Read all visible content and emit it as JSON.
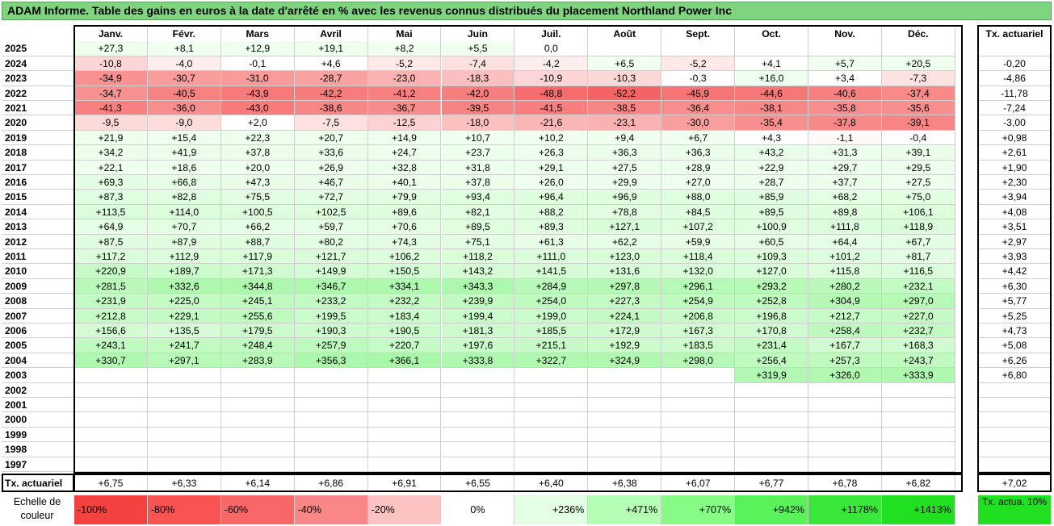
{
  "title": "ADAM Informe. Table des gains en euros à la date d'arrêté en % avec les revenus connus distribués du placement Northland Power Inc",
  "months": [
    "Janv.",
    "Févr.",
    "Mars",
    "Avril",
    "Mai",
    "Juin",
    "Juil.",
    "Août",
    "Sept.",
    "Oct.",
    "Nov.",
    "Déc."
  ],
  "actu_header": "Tx. actuariel",
  "rows": [
    {
      "year": "2025",
      "values": [
        "+27,3",
        "+8,1",
        "+12,9",
        "+19,1",
        "+8,2",
        "+5,5",
        "0,0",
        "",
        "",
        "",
        "",
        ""
      ],
      "actu": ""
    },
    {
      "year": "2024",
      "values": [
        "-10,8",
        "-4,0",
        "-0,1",
        "+4,6",
        "-5,2",
        "-7,4",
        "-4,2",
        "+6,5",
        "-5,2",
        "+4,1",
        "+5,7",
        "+20,5"
      ],
      "actu": "-0,20"
    },
    {
      "year": "2023",
      "values": [
        "-34,9",
        "-30,7",
        "-31,0",
        "-28,7",
        "-23,0",
        "-18,3",
        "-10,9",
        "-10,3",
        "-0,3",
        "+16,0",
        "+3,4",
        "-7,3"
      ],
      "actu": "-4,86"
    },
    {
      "year": "2022",
      "values": [
        "-34,7",
        "-40,5",
        "-43,9",
        "-42,2",
        "-41,2",
        "-42,0",
        "-48,8",
        "-52,2",
        "-45,9",
        "-44,6",
        "-40,6",
        "-37,4"
      ],
      "actu": "-11,78"
    },
    {
      "year": "2021",
      "values": [
        "-41,3",
        "-36,0",
        "-43,0",
        "-38,6",
        "-36,7",
        "-39,5",
        "-41,5",
        "-38,5",
        "-36,4",
        "-38,1",
        "-35,8",
        "-35,6"
      ],
      "actu": "-7,24"
    },
    {
      "year": "2020",
      "values": [
        "-9,5",
        "-9,0",
        "+2,0",
        "-7,5",
        "-12,5",
        "-18,0",
        "-21,6",
        "-23,1",
        "-30,0",
        "-35,4",
        "-37,8",
        "-39,1"
      ],
      "actu": "-3,00"
    },
    {
      "year": "2019",
      "values": [
        "+21,9",
        "+15,4",
        "+22,3",
        "+20,7",
        "+14,9",
        "+10,7",
        "+10,2",
        "+9,4",
        "+6,7",
        "+4,3",
        "-1,1",
        "-0,4"
      ],
      "actu": "+0,98"
    },
    {
      "year": "2018",
      "values": [
        "+34,2",
        "+41,9",
        "+37,8",
        "+33,6",
        "+24,7",
        "+23,7",
        "+26,3",
        "+36,3",
        "+36,3",
        "+43,2",
        "+31,3",
        "+39,1"
      ],
      "actu": "+2,61"
    },
    {
      "year": "2017",
      "values": [
        "+22,1",
        "+18,6",
        "+20,0",
        "+26,9",
        "+32,8",
        "+31,8",
        "+29,1",
        "+27,5",
        "+28,9",
        "+22,9",
        "+29,7",
        "+29,5"
      ],
      "actu": "+1,90"
    },
    {
      "year": "2016",
      "values": [
        "+69,3",
        "+66,8",
        "+47,3",
        "+46,7",
        "+40,1",
        "+37,8",
        "+26,0",
        "+29,9",
        "+27,0",
        "+28,7",
        "+37,7",
        "+27,5"
      ],
      "actu": "+2,30"
    },
    {
      "year": "2015",
      "values": [
        "+87,3",
        "+82,8",
        "+75,5",
        "+72,7",
        "+79,9",
        "+93,4",
        "+96,4",
        "+96,9",
        "+88,0",
        "+85,9",
        "+68,2",
        "+75,0"
      ],
      "actu": "+3,94"
    },
    {
      "year": "2014",
      "values": [
        "+113,5",
        "+114,0",
        "+100,5",
        "+102,5",
        "+89,6",
        "+82,1",
        "+88,2",
        "+78,8",
        "+84,5",
        "+89,5",
        "+89,8",
        "+106,1"
      ],
      "actu": "+4,08"
    },
    {
      "year": "2013",
      "values": [
        "+64,9",
        "+70,7",
        "+66,2",
        "+59,7",
        "+70,6",
        "+89,5",
        "+89,3",
        "+127,1",
        "+107,2",
        "+100,9",
        "+111,8",
        "+118,9"
      ],
      "actu": "+3,51"
    },
    {
      "year": "2012",
      "values": [
        "+87,5",
        "+87,9",
        "+88,7",
        "+80,2",
        "+74,3",
        "+75,1",
        "+61,3",
        "+62,2",
        "+59,9",
        "+60,5",
        "+64,4",
        "+67,7"
      ],
      "actu": "+2,97"
    },
    {
      "year": "2011",
      "values": [
        "+117,2",
        "+112,9",
        "+117,9",
        "+121,7",
        "+106,2",
        "+118,2",
        "+111,0",
        "+123,0",
        "+118,4",
        "+109,3",
        "+101,2",
        "+81,7"
      ],
      "actu": "+3,93"
    },
    {
      "year": "2010",
      "values": [
        "+220,9",
        "+189,7",
        "+171,3",
        "+149,9",
        "+150,5",
        "+143,2",
        "+141,5",
        "+131,6",
        "+132,0",
        "+127,0",
        "+115,8",
        "+116,5"
      ],
      "actu": "+4,42"
    },
    {
      "year": "2009",
      "values": [
        "+281,5",
        "+332,6",
        "+344,8",
        "+346,7",
        "+334,1",
        "+343,3",
        "+284,9",
        "+297,8",
        "+296,1",
        "+293,2",
        "+280,2",
        "+232,1"
      ],
      "actu": "+6,30"
    },
    {
      "year": "2008",
      "values": [
        "+231,9",
        "+225,0",
        "+245,1",
        "+233,2",
        "+232,2",
        "+239,9",
        "+254,0",
        "+227,3",
        "+254,9",
        "+252,8",
        "+304,9",
        "+297,0"
      ],
      "actu": "+5,77"
    },
    {
      "year": "2007",
      "values": [
        "+212,8",
        "+229,1",
        "+255,6",
        "+199,5",
        "+183,4",
        "+199,4",
        "+199,0",
        "+224,1",
        "+206,8",
        "+196,8",
        "+212,7",
        "+227,0"
      ],
      "actu": "+5,25"
    },
    {
      "year": "2006",
      "values": [
        "+156,6",
        "+135,5",
        "+179,5",
        "+190,3",
        "+190,5",
        "+181,3",
        "+185,5",
        "+172,9",
        "+167,3",
        "+170,8",
        "+258,4",
        "+232,7"
      ],
      "actu": "+4,73"
    },
    {
      "year": "2005",
      "values": [
        "+243,1",
        "+241,7",
        "+248,4",
        "+257,9",
        "+220,7",
        "+197,6",
        "+215,1",
        "+192,9",
        "+183,5",
        "+231,4",
        "+167,7",
        "+168,3"
      ],
      "actu": "+5,08"
    },
    {
      "year": "2004",
      "values": [
        "+330,7",
        "+297,1",
        "+283,9",
        "+356,3",
        "+366,1",
        "+333,8",
        "+322,7",
        "+324,9",
        "+298,0",
        "+256,4",
        "+257,3",
        "+243,7"
      ],
      "actu": "+6,26"
    },
    {
      "year": "2003",
      "values": [
        "",
        "",
        "",
        "",
        "",
        "",
        "",
        "",
        "",
        "+319,9",
        "+326,0",
        "+333,9"
      ],
      "actu": "+6,80"
    },
    {
      "year": "2002",
      "values": [
        "",
        "",
        "",
        "",
        "",
        "",
        "",
        "",
        "",
        "",
        "",
        ""
      ],
      "actu": ""
    },
    {
      "year": "2001",
      "values": [
        "",
        "",
        "",
        "",
        "",
        "",
        "",
        "",
        "",
        "",
        "",
        ""
      ],
      "actu": ""
    },
    {
      "year": "2000",
      "values": [
        "",
        "",
        "",
        "",
        "",
        "",
        "",
        "",
        "",
        "",
        "",
        ""
      ],
      "actu": ""
    },
    {
      "year": "1999",
      "values": [
        "",
        "",
        "",
        "",
        "",
        "",
        "",
        "",
        "",
        "",
        "",
        ""
      ],
      "actu": ""
    },
    {
      "year": "1998",
      "values": [
        "",
        "",
        "",
        "",
        "",
        "",
        "",
        "",
        "",
        "",
        "",
        ""
      ],
      "actu": ""
    },
    {
      "year": "1997",
      "values": [
        "",
        "",
        "",
        "",
        "",
        "",
        "",
        "",
        "",
        "",
        "",
        ""
      ],
      "actu": ""
    }
  ],
  "footer": {
    "label": "Tx. actuariel",
    "values": [
      "+6,75",
      "+6,33",
      "+6,14",
      "+6,86",
      "+6,91",
      "+6,55",
      "+6,40",
      "+6,38",
      "+6,07",
      "+6,77",
      "+6,78",
      "+6,82"
    ],
    "actu": "+7,02"
  },
  "legend": {
    "label": "Echelle de couleur",
    "items": [
      {
        "text": "-100%",
        "color": "#f64141"
      },
      {
        "text": "-80%",
        "color": "#f75353"
      },
      {
        "text": "-60%",
        "color": "#f86868"
      },
      {
        "text": "-40%",
        "color": "#fa8787"
      },
      {
        "text": "-20%",
        "color": "#fcc3c3"
      },
      {
        "text": "0%",
        "color": "#ffffff"
      },
      {
        "text": "+236%",
        "color": "#e4ffe4"
      },
      {
        "text": "+471%",
        "color": "#b4ffb4"
      },
      {
        "text": "+707%",
        "color": "#86fc86"
      },
      {
        "text": "+942%",
        "color": "#5af25a"
      },
      {
        "text": "+1178%",
        "color": "#3ae83a"
      },
      {
        "text": "+1413%",
        "color": "#21e021"
      }
    ],
    "actu_label": "Tx. actua. 10%",
    "actu_color": "#21e021"
  }
}
